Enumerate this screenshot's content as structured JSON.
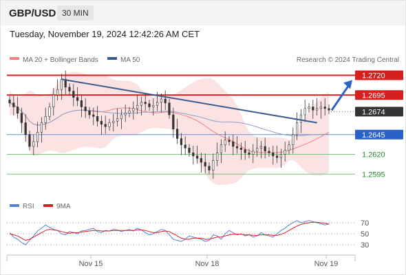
{
  "header": {
    "symbol": "GBP/USD",
    "timeframe": "30 MIN"
  },
  "timestamp": "Tuesday, November 19, 2024 12:42:26 AM CET",
  "legend": {
    "ma20_label": "MA 20 + Bollinger Bands",
    "ma50_label": "MA 50",
    "copyright": "Research © 2024 Trading Central",
    "ma20_color": "#f08080",
    "ma50_color": "#3a5a8c"
  },
  "rsi_legend": {
    "rsi_label": "RSI",
    "ma_label": "9MA",
    "rsi_color": "#5b7fd6",
    "ma_color": "#d62020"
  },
  "chart_data": [
    {
      "type": "line",
      "title": "",
      "x_labels": [
        "Nov 15",
        "Nov 18",
        "Nov 19"
      ],
      "ylim": [
        1.257,
        1.273
      ],
      "price_levels": [
        {
          "value": 1.272,
          "label": "1.2720",
          "color": "#d62020",
          "role": "resistance"
        },
        {
          "value": 1.2695,
          "label": "1.2695",
          "color": "#d62020",
          "role": "resistance"
        },
        {
          "value": 1.2674,
          "label": "1.2674",
          "color": "#333333",
          "role": "last price"
        },
        {
          "value": 1.2645,
          "label": "1.2645",
          "color": "#2a62c8",
          "role": "pivot"
        },
        {
          "value": 1.262,
          "label": "1.2620",
          "color": "#2a8a2a",
          "role": "support"
        },
        {
          "value": 1.2595,
          "label": "1.2595",
          "color": "#2a8a2a",
          "role": "support"
        }
      ],
      "close_series": [
        1.2685,
        1.268,
        1.2672,
        1.266,
        1.2645,
        1.263,
        1.2636,
        1.2648,
        1.266,
        1.2668,
        1.268,
        1.2695,
        1.2702,
        1.2715,
        1.2705,
        1.27,
        1.2692,
        1.2688,
        1.268,
        1.2675,
        1.267,
        1.2668,
        1.2662,
        1.2658,
        1.2655,
        1.266,
        1.2662,
        1.2665,
        1.267,
        1.2672,
        1.2675,
        1.2678,
        1.2682,
        1.2686,
        1.2684,
        1.268,
        1.2682,
        1.2686,
        1.269,
        1.2685,
        1.267,
        1.2652,
        1.264,
        1.2632,
        1.2628,
        1.2622,
        1.2618,
        1.2615,
        1.261,
        1.2605,
        1.26,
        1.2612,
        1.2622,
        1.2632,
        1.2638,
        1.2636,
        1.263,
        1.2628,
        1.2626,
        1.2622,
        1.262,
        1.2624,
        1.2628,
        1.263,
        1.2624,
        1.2622,
        1.2618,
        1.2616,
        1.262,
        1.2625,
        1.2632,
        1.2645,
        1.266,
        1.267,
        1.2678,
        1.268,
        1.2676,
        1.2678,
        1.268,
        1.2678,
        1.2676
      ],
      "trendline": {
        "from": 1.2715,
        "to": 1.266
      },
      "forecast_arrow": {
        "from": 1.2674,
        "to": 1.2714
      }
    },
    {
      "type": "line",
      "title": "",
      "ylim": [
        20,
        80
      ],
      "levels": [
        {
          "value": 70,
          "label": "70"
        },
        {
          "value": 50,
          "label": "50"
        },
        {
          "value": 30,
          "label": "30"
        }
      ],
      "rsi": [
        52,
        44,
        40,
        34,
        30,
        38,
        46,
        55,
        60,
        66,
        62,
        58,
        56,
        50,
        48,
        54,
        52,
        50,
        55,
        56,
        58,
        60,
        54,
        52,
        56,
        55,
        58,
        57,
        54,
        56,
        58,
        55,
        60,
        57,
        52,
        48,
        50,
        54,
        58,
        56,
        48,
        40,
        38,
        36,
        40,
        46,
        44,
        42,
        40,
        36,
        38,
        48,
        46,
        40,
        50,
        56,
        52,
        48,
        50,
        46,
        48,
        44,
        46,
        52,
        48,
        46,
        44,
        50,
        56,
        60,
        66,
        70,
        74,
        70,
        72,
        74,
        72,
        70,
        68,
        66,
        68
      ],
      "rsi_ma": [
        50,
        48,
        46,
        42,
        38,
        40,
        44,
        48,
        52,
        56,
        58,
        57,
        56,
        54,
        52,
        51,
        52,
        52,
        53,
        54,
        55,
        56,
        56,
        55,
        55,
        55,
        56,
        56,
        56,
        56,
        56,
        56,
        57,
        57,
        56,
        54,
        52,
        52,
        54,
        55,
        54,
        50,
        46,
        42,
        40,
        40,
        42,
        42,
        42,
        40,
        40,
        42,
        44,
        44,
        46,
        48,
        49,
        49,
        49,
        48,
        48,
        47,
        47,
        48,
        48,
        48,
        47,
        47,
        49,
        52,
        56,
        60,
        64,
        67,
        69,
        70,
        71,
        71,
        70,
        69,
        68
      ]
    }
  ]
}
